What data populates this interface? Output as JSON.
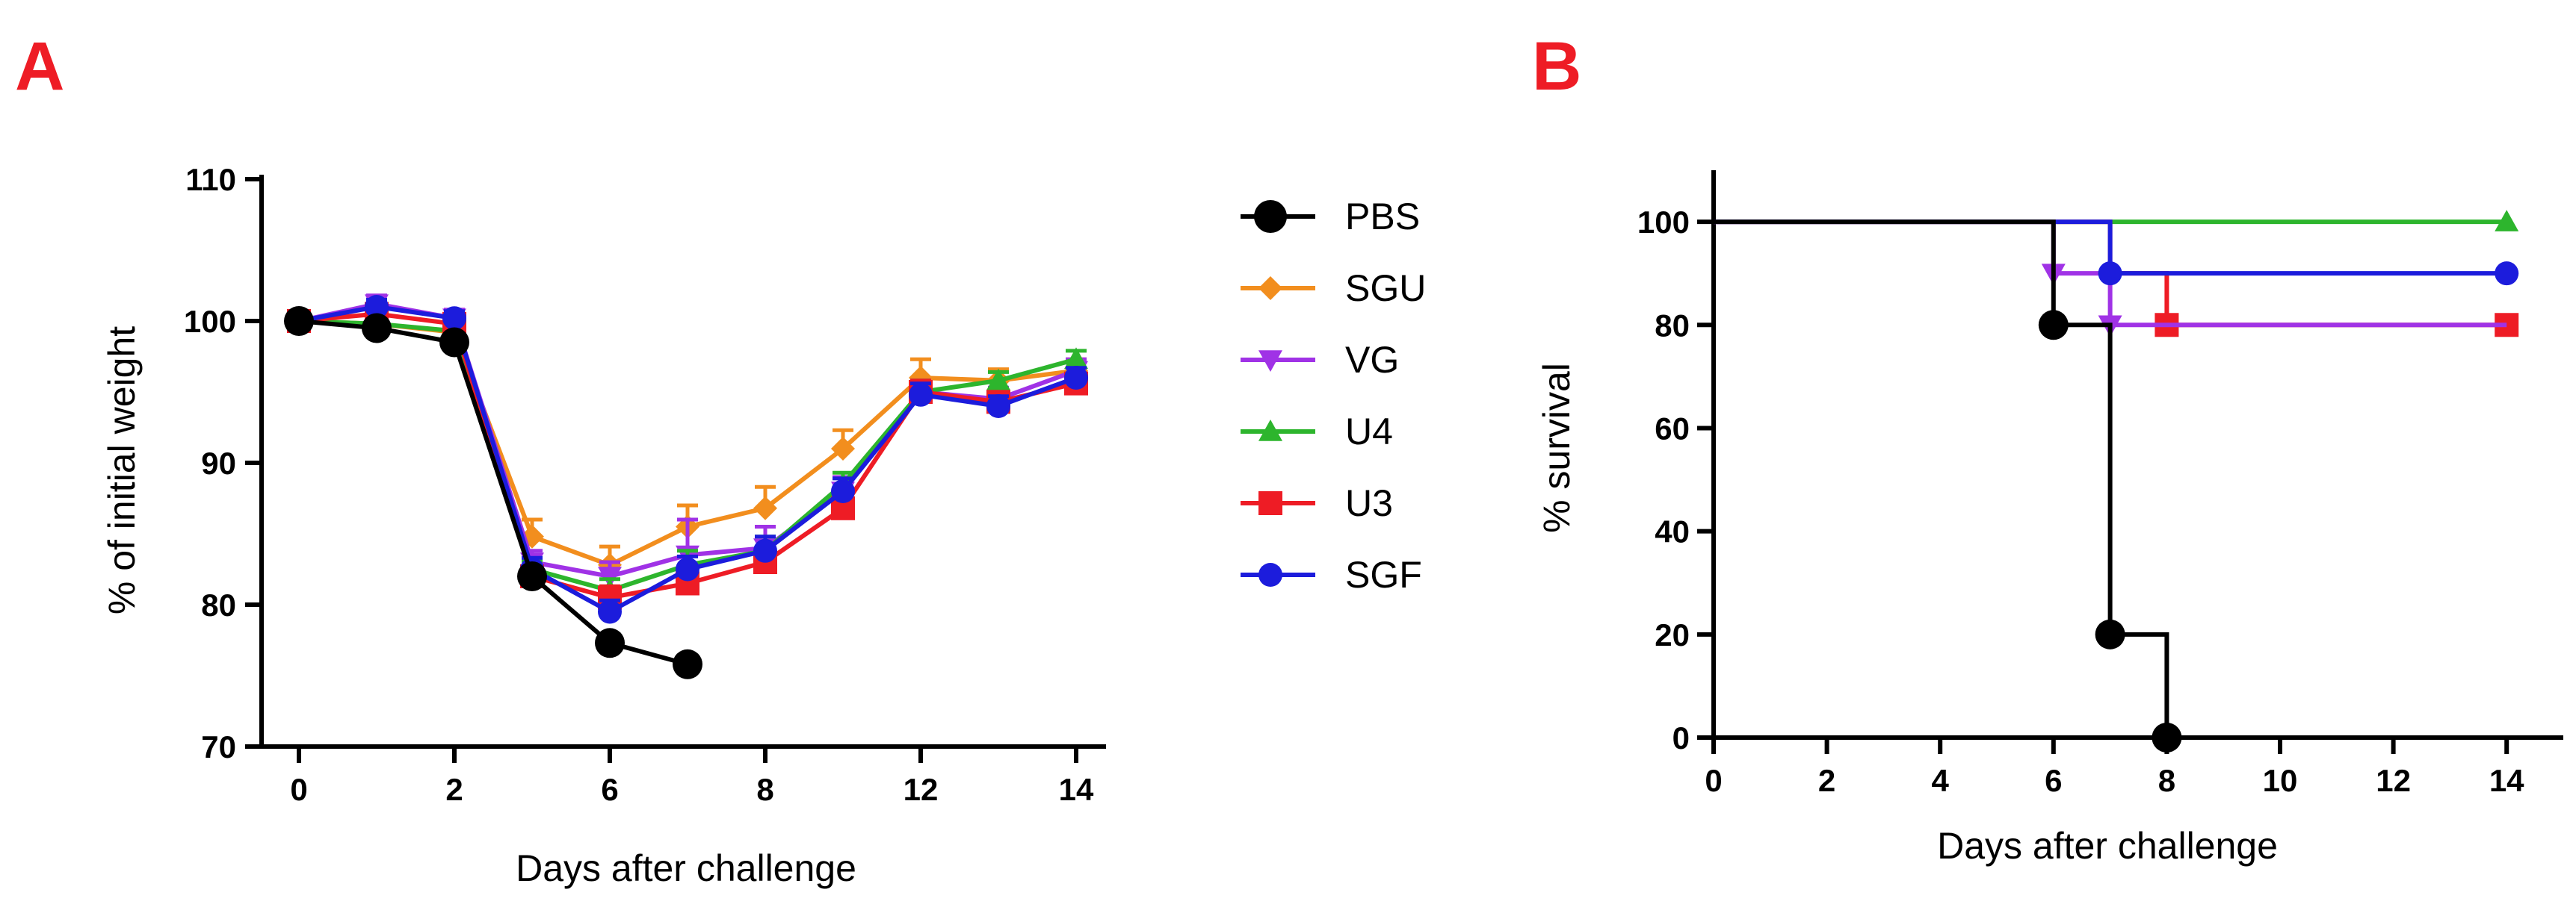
{
  "panels": {
    "a_label": "A",
    "b_label": "B"
  },
  "legend": {
    "items": [
      "PBS",
      "SGU",
      "VG",
      "U4",
      "U3",
      "SGF"
    ]
  },
  "chart_data": [
    {
      "type": "line",
      "panel": "A",
      "xlabel": "Days after challenge",
      "ylabel": "% of initial weight",
      "ylim": [
        70,
        110
      ],
      "yticks": [
        70,
        80,
        90,
        100,
        110
      ],
      "x_tick_labels": [
        "0",
        "2",
        "6",
        "8",
        "12",
        "14"
      ],
      "x_tick_positions": [
        0,
        2,
        4,
        6,
        8,
        10
      ],
      "x_categories": [
        0,
        1,
        2,
        3,
        6,
        7,
        8,
        10,
        12,
        13,
        14
      ],
      "series": [
        {
          "name": "PBS",
          "color": "#000000",
          "marker": "circle",
          "x": [
            0,
            1,
            2,
            3,
            6,
            7
          ],
          "y": [
            100.0,
            99.5,
            98.5,
            82.0,
            77.3,
            75.8
          ],
          "err": [
            0.3,
            0.3,
            0.5,
            0.5,
            0.6,
            0.6
          ]
        },
        {
          "name": "SGU",
          "color": "#f28e1e",
          "marker": "diamond",
          "x": [
            0,
            1,
            2,
            3,
            6,
            7,
            8,
            10,
            12,
            13,
            14
          ],
          "y": [
            100.0,
            99.8,
            99.2,
            84.8,
            82.8,
            85.5,
            86.8,
            91.0,
            96.0,
            95.8,
            96.5
          ],
          "err": [
            0.3,
            0.5,
            0.5,
            1.2,
            1.3,
            1.5,
            1.5,
            1.3,
            1.3,
            0.8,
            0.8
          ]
        },
        {
          "name": "VG",
          "color": "#a032e6",
          "marker": "triangle-down",
          "x": [
            0,
            1,
            2,
            3,
            6,
            7,
            8,
            10,
            12,
            13,
            14
          ],
          "y": [
            100.0,
            101.2,
            100.2,
            83.0,
            82.0,
            83.5,
            84.0,
            88.0,
            95.0,
            94.5,
            96.5
          ],
          "err": [
            0.3,
            0.6,
            0.6,
            0.8,
            1.0,
            2.5,
            1.5,
            1.0,
            0.8,
            0.8,
            0.8
          ]
        },
        {
          "name": "U4",
          "color": "#2db52d",
          "marker": "triangle-up",
          "x": [
            0,
            1,
            2,
            3,
            6,
            7,
            8,
            10,
            12,
            13,
            14
          ],
          "y": [
            100.0,
            99.8,
            99.3,
            82.5,
            81.0,
            82.8,
            83.8,
            88.5,
            95.0,
            95.8,
            97.3
          ],
          "err": [
            0.3,
            0.4,
            0.4,
            0.6,
            0.8,
            1.0,
            1.0,
            0.8,
            0.8,
            0.6,
            0.6
          ]
        },
        {
          "name": "U3",
          "color": "#ee1c25",
          "marker": "square",
          "x": [
            0,
            1,
            2,
            3,
            6,
            7,
            8,
            10,
            12,
            13,
            14
          ],
          "y": [
            100.0,
            100.5,
            99.8,
            82.0,
            80.5,
            81.5,
            83.0,
            86.8,
            95.0,
            94.3,
            95.6
          ],
          "err": [
            0.3,
            0.4,
            0.4,
            0.6,
            0.8,
            0.8,
            0.8,
            0.8,
            0.8,
            0.6,
            0.6
          ]
        },
        {
          "name": "SGF",
          "color": "#1c1cdc",
          "marker": "circle",
          "x": [
            0,
            1,
            2,
            3,
            6,
            7,
            8,
            10,
            12,
            13,
            14
          ],
          "y": [
            100.0,
            101.0,
            100.2,
            82.5,
            79.5,
            82.5,
            83.8,
            88.0,
            94.8,
            94.0,
            96.0
          ],
          "err": [
            0.3,
            0.5,
            0.5,
            0.8,
            0.8,
            0.9,
            1.0,
            0.9,
            0.8,
            0.7,
            0.7
          ]
        }
      ]
    },
    {
      "type": "line",
      "panel": "B",
      "subtype": "survival-step",
      "xlabel": "Days after challenge",
      "ylabel": "% survival",
      "xlim": [
        0,
        15
      ],
      "ylim": [
        0,
        110
      ],
      "xticks": [
        0,
        2,
        4,
        6,
        8,
        10,
        12,
        14
      ],
      "yticks": [
        0,
        20,
        40,
        60,
        80,
        100
      ],
      "series": [
        {
          "name": "PBS",
          "color": "#000000",
          "marker": "circle",
          "steps": [
            [
              0,
              100
            ],
            [
              6,
              80
            ],
            [
              7,
              20
            ],
            [
              8,
              0
            ]
          ],
          "markers": [
            [
              6,
              80
            ],
            [
              7,
              20
            ],
            [
              8,
              0
            ]
          ]
        },
        {
          "name": "VG",
          "color": "#a032e6",
          "marker": "triangle-down",
          "steps": [
            [
              0,
              100
            ],
            [
              6,
              90
            ],
            [
              7,
              80
            ],
            [
              14,
              80
            ]
          ],
          "markers": [
            [
              6,
              90
            ],
            [
              7,
              80
            ]
          ]
        },
        {
          "name": "U3",
          "color": "#ee1c25",
          "marker": "square",
          "steps": [
            [
              0,
              100
            ],
            [
              7,
              90
            ],
            [
              8,
              80
            ],
            [
              14,
              80
            ]
          ],
          "markers": [
            [
              8,
              80
            ],
            [
              14,
              80
            ]
          ]
        },
        {
          "name": "SGF",
          "color": "#1c1cdc",
          "marker": "circle",
          "steps": [
            [
              0,
              100
            ],
            [
              7,
              90
            ],
            [
              14,
              90
            ]
          ],
          "markers": [
            [
              7,
              90
            ],
            [
              14,
              90
            ]
          ]
        },
        {
          "name": "U4",
          "color": "#2db52d",
          "marker": "triangle-up",
          "steps": [
            [
              0,
              100
            ],
            [
              14,
              100
            ]
          ],
          "markers": [
            [
              14,
              100
            ]
          ]
        }
      ]
    }
  ]
}
